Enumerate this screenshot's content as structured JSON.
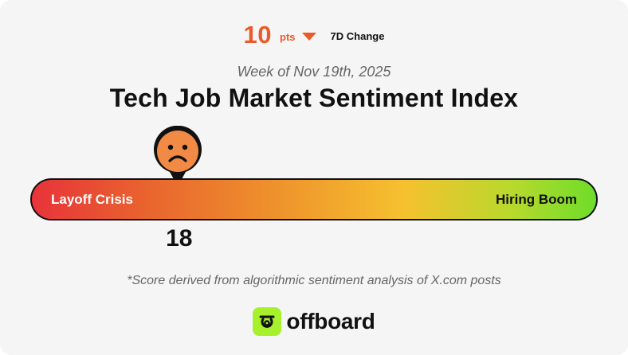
{
  "header": {
    "change_value": "10",
    "change_unit": "pts",
    "change_direction": "down",
    "change_label": "7D Change",
    "week": "Week of Nov 19th, 2025",
    "title": "Tech Job Market Sentiment Index"
  },
  "gauge": {
    "left_label": "Layoff Crisis",
    "right_label": "Hiring Boom",
    "score": "18",
    "score_value": 18,
    "min": 0,
    "max": 100,
    "marker_icon": "sad-face-icon"
  },
  "footnote": "*Score derived from algorithmic sentiment analysis of X.com posts",
  "brand": {
    "name": "offboard",
    "logo_icon": "offboard-logo-icon"
  },
  "colors": {
    "accent": "#ea5a2b",
    "brand": "#a6f12b",
    "gauge_low": "#e8333a",
    "gauge_mid": "#f5c12f",
    "gauge_high": "#6fdd2a"
  }
}
